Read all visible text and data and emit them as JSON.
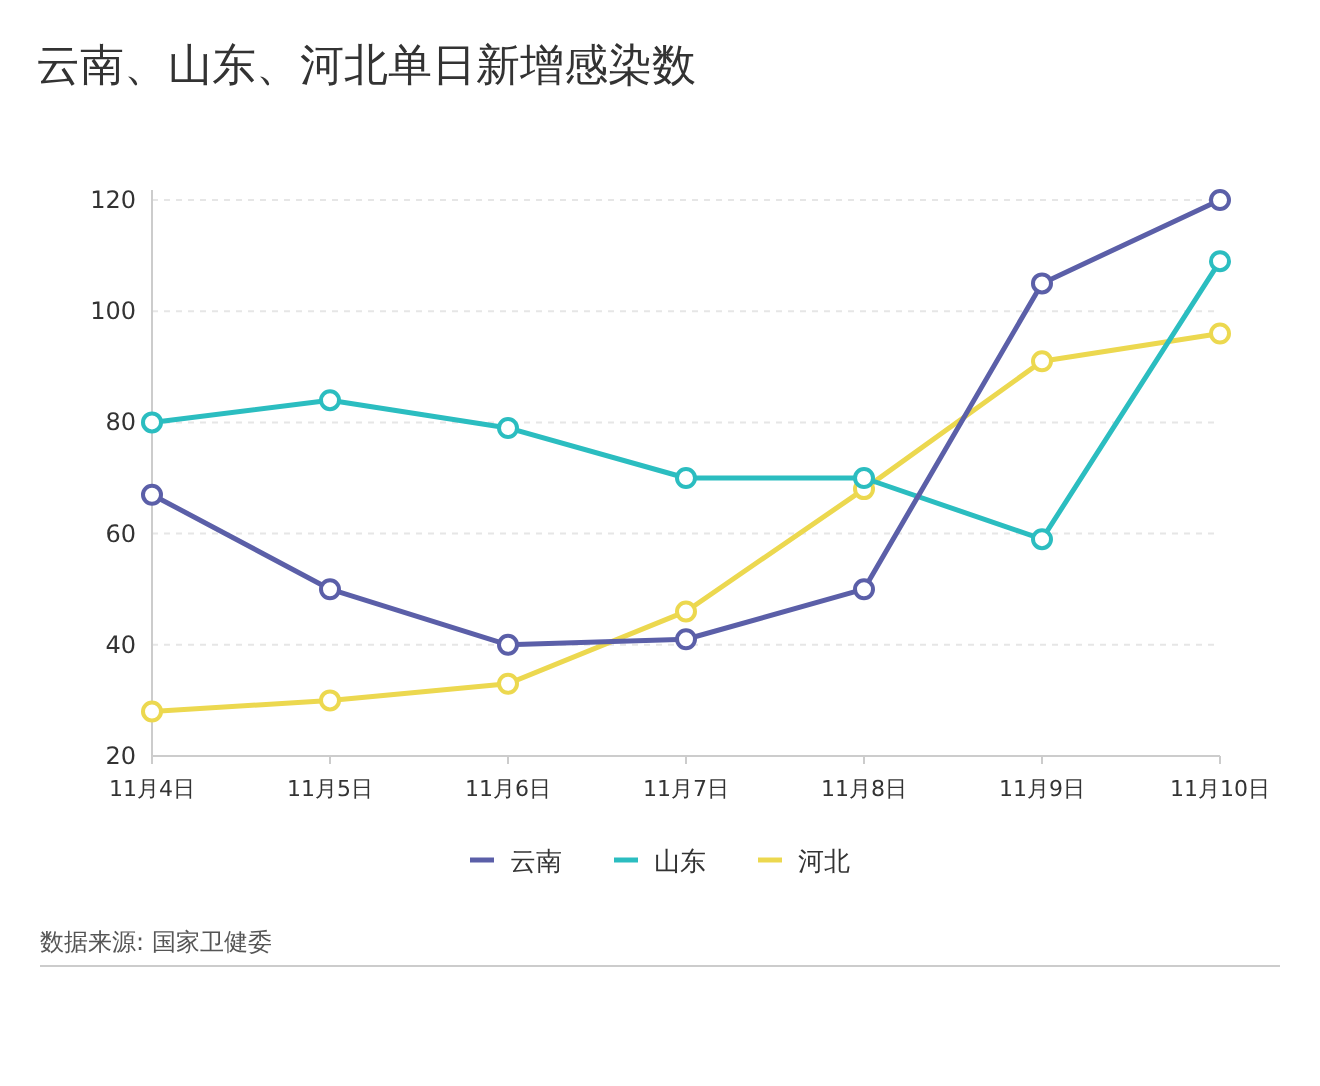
{
  "chart_data": {
    "type": "line",
    "title": "云南、山东、河北单日新增感染数",
    "categories": [
      "11月4日",
      "11月5日",
      "11月6日",
      "11月7日",
      "11月8日",
      "11月9日",
      "11月10日"
    ],
    "series": [
      {
        "name": "云南",
        "color": "#5b5fa8",
        "values": [
          67,
          50,
          40,
          41,
          50,
          105,
          120
        ]
      },
      {
        "name": "山东",
        "color": "#2bbdc0",
        "values": [
          80,
          84,
          79,
          70,
          70,
          59,
          109
        ]
      },
      {
        "name": "河北",
        "color": "#ecd84f",
        "values": [
          28,
          30,
          33,
          46,
          68,
          91,
          96
        ]
      }
    ],
    "ylim": [
      20,
      120
    ],
    "yticks": [
      20,
      40,
      60,
      80,
      100,
      120
    ],
    "grid": "y",
    "legend": "bottom",
    "marker": "circle",
    "annotations": [
      "数据来源: 国家卫健委"
    ]
  }
}
